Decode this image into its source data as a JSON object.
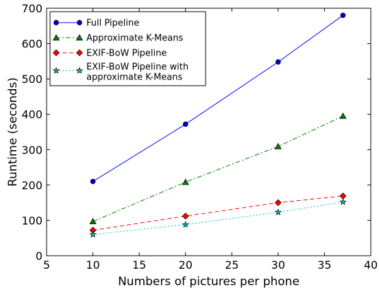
{
  "chart_data": {
    "type": "line",
    "xlabel": "Numbers of pictures per phone",
    "ylabel": "Runtime (seconds)",
    "xlim": [
      5,
      40
    ],
    "ylim": [
      0,
      700
    ],
    "xticks": [
      "5",
      "10",
      "15",
      "20",
      "25",
      "30",
      "35",
      "40"
    ],
    "yticks": [
      "0",
      "100",
      "200",
      "300",
      "400",
      "500",
      "600",
      "700"
    ],
    "grid": false,
    "legend_position": "top-left",
    "x": [
      10,
      20,
      30,
      37
    ],
    "series": [
      {
        "name": "Full Pipeline",
        "values": [
          210,
          372,
          548,
          680
        ],
        "color": "#0000ff",
        "dash": "solid",
        "marker": "circle",
        "marker_color": "#0000cc"
      },
      {
        "name": "Approximate K-Means",
        "values": [
          97,
          208,
          309,
          395
        ],
        "color": "#008000",
        "dash": "dashdot",
        "marker": "triangle",
        "marker_color": "#008000"
      },
      {
        "name": "EXIF-BoW Pipeline",
        "values": [
          72,
          112,
          150,
          169
        ],
        "color": "#ff0000",
        "dash": "dashed",
        "marker": "diamond",
        "marker_color": "#ff0000"
      },
      {
        "name_lines": [
          "EXIF-BoW Pipeline with",
          "approximate K-Means"
        ],
        "values": [
          60,
          88,
          123,
          152
        ],
        "color": "#00bfbf",
        "dash": "dotted",
        "marker": "star",
        "marker_color": "#00bfbf"
      }
    ]
  }
}
